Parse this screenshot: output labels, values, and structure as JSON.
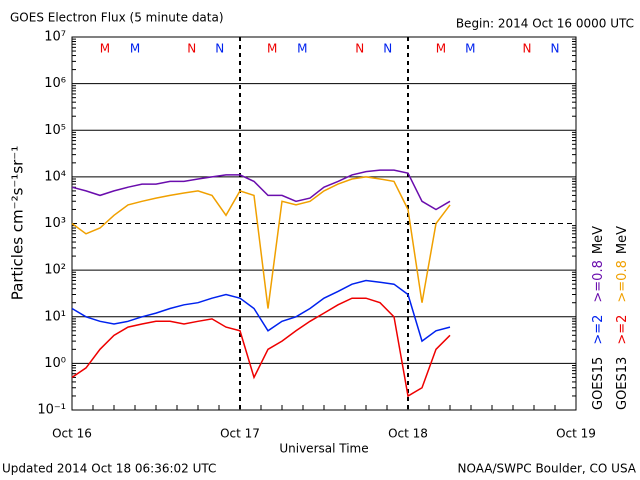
{
  "chart_data": {
    "type": "line",
    "title": "GOES Electron Flux (5 minute data)",
    "subtitle": "Begin: 2014 Oct 16 0000 UTC",
    "xlabel": "Universal Time",
    "ylabel": "Particles cm⁻²s⁻¹sr⁻¹",
    "footer_left": "Updated 2014 Oct 18 06:36:02 UTC",
    "footer_right": "NOAA/SWPC Boulder, CO USA",
    "log_y": true,
    "grid": true,
    "dashed_level": 1000,
    "xlim": [
      0,
      72
    ],
    "xticks": [
      {
        "value": 0,
        "label": "Oct 16"
      },
      {
        "value": 24,
        "label": "Oct 17"
      },
      {
        "value": 48,
        "label": "Oct 18"
      },
      {
        "value": 72,
        "label": "Oct 19"
      }
    ],
    "ylim": [
      0.1,
      10000000
    ],
    "yticks": [
      {
        "value": 0.1,
        "label": "10⁻¹"
      },
      {
        "value": 1,
        "label": "10⁰"
      },
      {
        "value": 10,
        "label": "10¹"
      },
      {
        "value": 100,
        "label": "10²"
      },
      {
        "value": 1000,
        "label": "10³"
      },
      {
        "value": 10000,
        "label": "10⁴"
      },
      {
        "value": 100000,
        "label": "10⁵"
      },
      {
        "value": 1000000,
        "label": "10⁶"
      },
      {
        "value": 10000000,
        "label": "10⁷"
      }
    ],
    "x": [
      0,
      2,
      4,
      6,
      8,
      10,
      12,
      14,
      16,
      18,
      20,
      22,
      24,
      26,
      28,
      30,
      32,
      34,
      36,
      38,
      40,
      42,
      44,
      46,
      48,
      50,
      52,
      54
    ],
    "series": [
      {
        "name": ">=0.8",
        "color": "#6a0dad",
        "values": [
          6000,
          5000,
          4000,
          5000,
          6000,
          7000,
          7000,
          8000,
          8000,
          9000,
          10000,
          11000,
          11000,
          8000,
          4000,
          4000,
          3000,
          3500,
          6000,
          8000,
          11000,
          13000,
          14000,
          14000,
          12000,
          3000,
          2000,
          3000
        ]
      },
      {
        "name": ">=0.8",
        "color": "#f0a000",
        "values": [
          1000,
          600,
          800,
          1500,
          2500,
          3000,
          3500,
          4000,
          4500,
          5000,
          4000,
          1500,
          5000,
          4000,
          15,
          3000,
          2500,
          3000,
          5000,
          7000,
          9000,
          10000,
          9000,
          8000,
          2000,
          20,
          1000,
          2500
        ]
      },
      {
        "name": ">=2",
        "color": "#0022ee",
        "values": [
          15,
          10,
          8,
          7,
          8,
          10,
          12,
          15,
          18,
          20,
          25,
          30,
          25,
          15,
          5,
          8,
          10,
          15,
          25,
          35,
          50,
          60,
          55,
          50,
          30,
          3,
          5,
          6
        ]
      },
      {
        "name": ">=2",
        "color": "#ee0000",
        "values": [
          0.5,
          0.8,
          2,
          4,
          6,
          7,
          8,
          8,
          7,
          8,
          9,
          6,
          5,
          0.5,
          2,
          3,
          5,
          8,
          12,
          18,
          25,
          25,
          20,
          10,
          0.2,
          0.3,
          2,
          4
        ]
      }
    ],
    "legend": [
      {
        "label": "GOES15",
        "unit": "MeV"
      },
      {
        "label": "GOES13",
        "unit": "MeV"
      }
    ],
    "letter_markers": [
      {
        "x": 4.7,
        "label": "M",
        "color": "#ee0000"
      },
      {
        "x": 9.0,
        "label": "M",
        "color": "#0022ee"
      },
      {
        "x": 17.1,
        "label": "N",
        "color": "#ee0000"
      },
      {
        "x": 21.1,
        "label": "N",
        "color": "#0022ee"
      },
      {
        "x": 28.6,
        "label": "M",
        "color": "#ee0000"
      },
      {
        "x": 32.9,
        "label": "M",
        "color": "#0022ee"
      },
      {
        "x": 41.1,
        "label": "N",
        "color": "#ee0000"
      },
      {
        "x": 45.1,
        "label": "N",
        "color": "#0022ee"
      },
      {
        "x": 52.7,
        "label": "M",
        "color": "#ee0000"
      },
      {
        "x": 56.9,
        "label": "M",
        "color": "#0022ee"
      },
      {
        "x": 65.0,
        "label": "N",
        "color": "#ee0000"
      },
      {
        "x": 69.0,
        "label": "N",
        "color": "#0022ee"
      }
    ]
  }
}
